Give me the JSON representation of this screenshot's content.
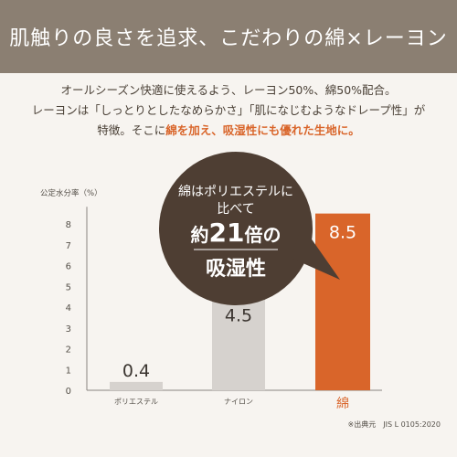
{
  "header": {
    "title": "肌触りの良さを追求、こだわりの綿×レーヨン"
  },
  "intro": {
    "line1": "オールシーズン快適に使えるよう、レーヨン50%、綿50%配合。",
    "line2": "レーヨンは「しっとりとしたなめらかさ」「肌になじむようなドレープ性」が",
    "line3_plain": "特徴。そこに",
    "line3_highlight": "綿を加え、吸湿性にも優れた生地に。"
  },
  "callout": {
    "line1": "綿はポリエステルに",
    "line2": "比べて",
    "line3_prefix": "約",
    "line3_number": "21",
    "line3_suffix": "倍の",
    "line4": "吸湿性"
  },
  "colors": {
    "banner": "#8b7f72",
    "accent": "#d9652a",
    "bar_gray": "#d6d2ce",
    "bubble": "#4e3e33"
  },
  "chart_data": {
    "type": "bar",
    "ylabel": "公定水分率（%）",
    "ylim": [
      0,
      9
    ],
    "yticks": [
      0,
      1,
      2,
      3,
      4,
      5,
      6,
      7,
      8
    ],
    "categories": [
      "ポリエステル",
      "ナイロン",
      "綿"
    ],
    "values": [
      0.4,
      4.5,
      8.5
    ],
    "value_labels": [
      "0.4",
      "4.5",
      "8.5"
    ],
    "highlight_category": "綿",
    "grid": false,
    "source": "※出典元　JIS L 0105:2020"
  }
}
